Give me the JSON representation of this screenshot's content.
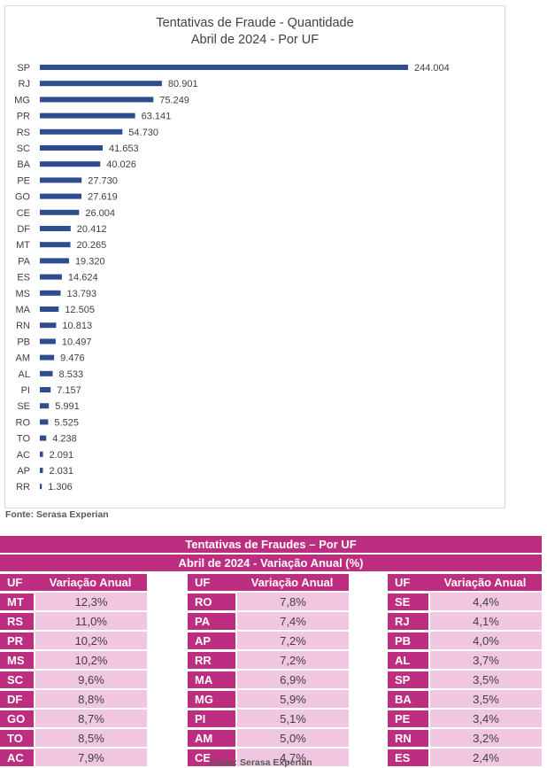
{
  "chart_data": {
    "type": "bar",
    "orientation": "horizontal",
    "title": "Tentativas de Fraude - Quantidade",
    "subtitle": "Abril de 2024 - Por UF",
    "categories": [
      "SP",
      "RJ",
      "MG",
      "PR",
      "RS",
      "SC",
      "BA",
      "PE",
      "GO",
      "CE",
      "DF",
      "MT",
      "PA",
      "ES",
      "MS",
      "MA",
      "RN",
      "PB",
      "AM",
      "AL",
      "PI",
      "SE",
      "RO",
      "TO",
      "AC",
      "AP",
      "RR"
    ],
    "values": [
      244004,
      80901,
      75249,
      63141,
      54730,
      41653,
      40026,
      27730,
      27619,
      26004,
      20412,
      20265,
      19320,
      14624,
      13793,
      12505,
      10813,
      10497,
      9476,
      8533,
      7157,
      5991,
      5525,
      4238,
      2091,
      2031,
      1306
    ],
    "value_labels": [
      "244.004",
      "80.901",
      "75.249",
      "63.141",
      "54.730",
      "41.653",
      "40.026",
      "27.730",
      "27.619",
      "26.004",
      "20.412",
      "20.265",
      "19.320",
      "14.624",
      "13.793",
      "12.505",
      "10.813",
      "10.497",
      "9.476",
      "8.533",
      "7.157",
      "5.991",
      "5.525",
      "4.238",
      "2.091",
      "2.031",
      "1.306"
    ],
    "xlim": [
      0,
      244004
    ],
    "color": "#2e4d8e"
  },
  "chart_source": "Fonte: Serasa Experian",
  "table": {
    "title": "Tentativas de Fraudes – Por UF",
    "subtitle": "Abril de 2024 - Variação Anual (%)",
    "uf_header": "UF",
    "var_header": "Variação Anual",
    "columns": [
      [
        {
          "uf": "MT",
          "var": "12,3%"
        },
        {
          "uf": "RS",
          "var": "11,0%"
        },
        {
          "uf": "PR",
          "var": "10,2%"
        },
        {
          "uf": "MS",
          "var": "10,2%"
        },
        {
          "uf": "SC",
          "var": "9,6%"
        },
        {
          "uf": "DF",
          "var": "8,8%"
        },
        {
          "uf": "GO",
          "var": "8,7%"
        },
        {
          "uf": "TO",
          "var": "8,5%"
        },
        {
          "uf": "AC",
          "var": "7,9%"
        }
      ],
      [
        {
          "uf": "RO",
          "var": "7,8%"
        },
        {
          "uf": "PA",
          "var": "7,4%"
        },
        {
          "uf": "AP",
          "var": "7,2%"
        },
        {
          "uf": "RR",
          "var": "7,2%"
        },
        {
          "uf": "MA",
          "var": "6,9%"
        },
        {
          "uf": "MG",
          "var": "5,9%"
        },
        {
          "uf": "PI",
          "var": "5,1%"
        },
        {
          "uf": "AM",
          "var": "5,0%"
        },
        {
          "uf": "CE",
          "var": "4,7%"
        }
      ],
      [
        {
          "uf": "SE",
          "var": "4,4%"
        },
        {
          "uf": "RJ",
          "var": "4,1%"
        },
        {
          "uf": "PB",
          "var": "4,0%"
        },
        {
          "uf": "AL",
          "var": "3,7%"
        },
        {
          "uf": "SP",
          "var": "3,5%"
        },
        {
          "uf": "BA",
          "var": "3,5%"
        },
        {
          "uf": "PE",
          "var": "3,4%"
        },
        {
          "uf": "RN",
          "var": "3,2%"
        },
        {
          "uf": "ES",
          "var": "2,4%"
        }
      ]
    ],
    "source": "Fonte: Serasa Experian"
  }
}
